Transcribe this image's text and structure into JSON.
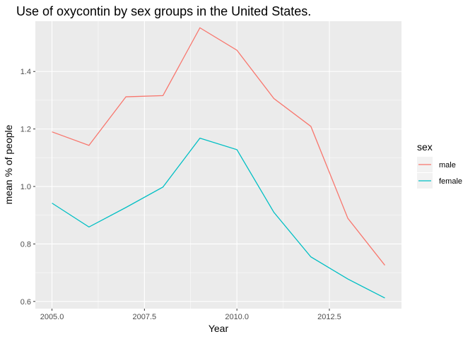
{
  "chart_data": {
    "type": "line",
    "title": "Use of oxycontin by sex groups in the United States.",
    "xlabel": "Year",
    "ylabel": "mean % of people",
    "x": [
      2005,
      2006,
      2007,
      2008,
      2009,
      2010,
      2011,
      2012,
      2013,
      2014
    ],
    "xlim": [
      2004.55,
      2014.45
    ],
    "ylim": [
      0.575,
      1.575
    ],
    "xticks": [
      2005.0,
      2007.5,
      2010.0,
      2012.5
    ],
    "xtick_labels": [
      "2005.0",
      "2007.5",
      "2010.0",
      "2012.5"
    ],
    "yticks": [
      0.6,
      0.8,
      1.0,
      1.2,
      1.4
    ],
    "ytick_labels": [
      "0.6",
      "0.8",
      "1.0",
      "1.2",
      "1.4"
    ],
    "grid": true,
    "legend": {
      "title": "sex",
      "placement": "right"
    },
    "series": [
      {
        "name": "male",
        "color": "#F8766D",
        "values": [
          1.19,
          1.143,
          1.312,
          1.316,
          1.552,
          1.474,
          1.306,
          1.209,
          0.889,
          0.726
        ]
      },
      {
        "name": "female",
        "color": "#00BFC4",
        "values": [
          0.942,
          0.859,
          0.927,
          0.998,
          1.168,
          1.128,
          0.91,
          0.755,
          0.678,
          0.612
        ]
      }
    ],
    "colors": {
      "panel_background": "#EBEBEB",
      "grid_major": "#FFFFFF",
      "legend_key_background": "#F2F2F2"
    }
  }
}
